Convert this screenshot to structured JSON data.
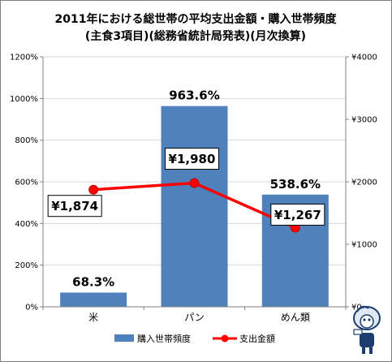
{
  "chart_data": {
    "type": "bar+line",
    "title": [
      "2011年における総世帯の平均支出金額・購入世帯頻度",
      "(主食3項目)(総務省統計局発表)(月次換算)"
    ],
    "categories": [
      "米",
      "パン",
      "めん類"
    ],
    "series": [
      {
        "name": "購入世帯頻度",
        "type": "bar",
        "axis": "left",
        "values": [
          68.3,
          963.6,
          538.6
        ],
        "labels": [
          "68.3%",
          "963.6%",
          "538.6%"
        ],
        "color": "#4f81bd"
      },
      {
        "name": "支出金額",
        "type": "line",
        "axis": "right",
        "values": [
          1874,
          1980,
          1267
        ],
        "labels": [
          "¥1,874",
          "¥1,980",
          "¥1,267"
        ],
        "color": "#ff0000"
      }
    ],
    "y_left": {
      "min": 0,
      "max": 1200,
      "step": 200,
      "ticks": [
        "0%",
        "200%",
        "400%",
        "600%",
        "800%",
        "1000%",
        "1200%"
      ]
    },
    "y_right": {
      "min": 0,
      "max": 4000,
      "step": 1000,
      "ticks": [
        "¥0",
        "¥1000",
        "¥2000",
        "¥3000",
        "¥4000"
      ]
    },
    "grid": true,
    "legend": "bottom"
  }
}
